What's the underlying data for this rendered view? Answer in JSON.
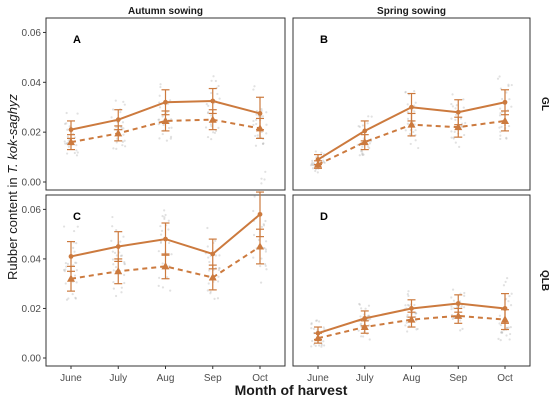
{
  "chart_data": {
    "type": "line",
    "ylabel_prefix": "Rubber content in ",
    "ylabel_italic": "T. kok-saghyz",
    "xlabel": "Month of harvest",
    "categories": [
      "June",
      "July",
      "Aug",
      "Sep",
      "Oct"
    ],
    "columns": [
      "Autumn sowing",
      "Spring sowing"
    ],
    "rows": [
      "GL",
      "QLB"
    ],
    "row_ylim": {
      "GL": [
        0,
        0.065
      ],
      "QLB": [
        0,
        0.065
      ]
    },
    "row_yticks": {
      "GL": [
        "0.00",
        "0.02",
        "0.04",
        "0.06"
      ],
      "QLB": [
        "0.00",
        "0.02",
        "0.04",
        "0.06"
      ]
    },
    "color": "#cc7a3e",
    "series_styles": {
      "solid": "circle",
      "dashed": "triangle"
    },
    "panels": [
      {
        "label": "A",
        "column": "Autumn sowing",
        "row": "GL",
        "solid": {
          "values": [
            0.021,
            0.025,
            0.032,
            0.0325,
            0.0275
          ],
          "errors": [
            0.0035,
            0.004,
            0.005,
            0.005,
            0.0065
          ]
        },
        "dashed": {
          "values": [
            0.016,
            0.0195,
            0.0245,
            0.025,
            0.0215
          ],
          "errors": [
            0.003,
            0.003,
            0.004,
            0.004,
            0.004
          ]
        }
      },
      {
        "label": "B",
        "column": "Spring sowing",
        "row": "GL",
        "solid": {
          "values": [
            0.009,
            0.0205,
            0.03,
            0.028,
            0.032
          ],
          "errors": [
            0.002,
            0.004,
            0.0055,
            0.005,
            0.005
          ]
        },
        "dashed": {
          "values": [
            0.007,
            0.016,
            0.023,
            0.022,
            0.0245
          ],
          "errors": [
            0.0015,
            0.003,
            0.0045,
            0.004,
            0.004
          ]
        }
      },
      {
        "label": "C",
        "column": "Autumn sowing",
        "row": "QLB",
        "solid": {
          "values": [
            0.041,
            0.045,
            0.048,
            0.042,
            0.058
          ],
          "errors": [
            0.006,
            0.006,
            0.0065,
            0.006,
            0.009
          ]
        },
        "dashed": {
          "values": [
            0.032,
            0.035,
            0.037,
            0.0325,
            0.045
          ],
          "errors": [
            0.005,
            0.005,
            0.005,
            0.005,
            0.007
          ]
        }
      },
      {
        "label": "D",
        "column": "Spring sowing",
        "row": "QLB",
        "solid": {
          "values": [
            0.01,
            0.016,
            0.02,
            0.022,
            0.02
          ],
          "errors": [
            0.0025,
            0.003,
            0.0035,
            0.0035,
            0.006
          ]
        },
        "dashed": {
          "values": [
            0.008,
            0.0125,
            0.0155,
            0.017,
            0.0155
          ],
          "errors": [
            0.002,
            0.0025,
            0.003,
            0.003,
            0.004
          ]
        }
      }
    ]
  }
}
